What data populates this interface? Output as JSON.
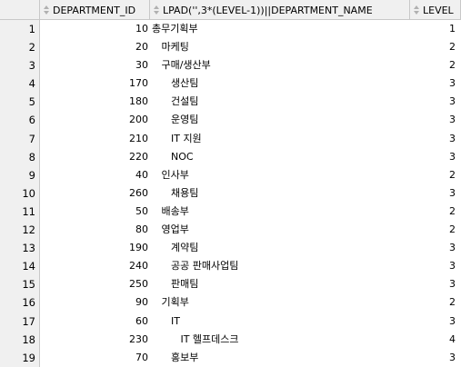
{
  "headers": {
    "rownum": "",
    "department_id": "DEPARTMENT_ID",
    "department_name": "LPAD('',3*(LEVEL-1))||DEPARTMENT_NAME",
    "level": "LEVEL"
  },
  "rows": [
    {
      "n": "1",
      "id": "10",
      "name": "총무기획부",
      "level": "1"
    },
    {
      "n": "2",
      "id": "20",
      "name": "   마케팅",
      "level": "2"
    },
    {
      "n": "3",
      "id": "30",
      "name": "   구매/생산부",
      "level": "2"
    },
    {
      "n": "4",
      "id": "170",
      "name": "      생산팀",
      "level": "3"
    },
    {
      "n": "5",
      "id": "180",
      "name": "      건설팀",
      "level": "3"
    },
    {
      "n": "6",
      "id": "200",
      "name": "      운영팀",
      "level": "3"
    },
    {
      "n": "7",
      "id": "210",
      "name": "      IT 지원",
      "level": "3"
    },
    {
      "n": "8",
      "id": "220",
      "name": "      NOC",
      "level": "3"
    },
    {
      "n": "9",
      "id": "40",
      "name": "   인사부",
      "level": "2"
    },
    {
      "n": "10",
      "id": "260",
      "name": "      채용팀",
      "level": "3"
    },
    {
      "n": "11",
      "id": "50",
      "name": "   배송부",
      "level": "2"
    },
    {
      "n": "12",
      "id": "80",
      "name": "   영업부",
      "level": "2"
    },
    {
      "n": "13",
      "id": "190",
      "name": "      계약팀",
      "level": "3"
    },
    {
      "n": "14",
      "id": "240",
      "name": "      공공 판매사업팀",
      "level": "3"
    },
    {
      "n": "15",
      "id": "250",
      "name": "      판매팀",
      "level": "3"
    },
    {
      "n": "16",
      "id": "90",
      "name": "   기획부",
      "level": "2"
    },
    {
      "n": "17",
      "id": "60",
      "name": "      IT",
      "level": "3"
    },
    {
      "n": "18",
      "id": "230",
      "name": "         IT 헬프데스크",
      "level": "4"
    },
    {
      "n": "19",
      "id": "70",
      "name": "      홍보부",
      "level": "3"
    }
  ]
}
